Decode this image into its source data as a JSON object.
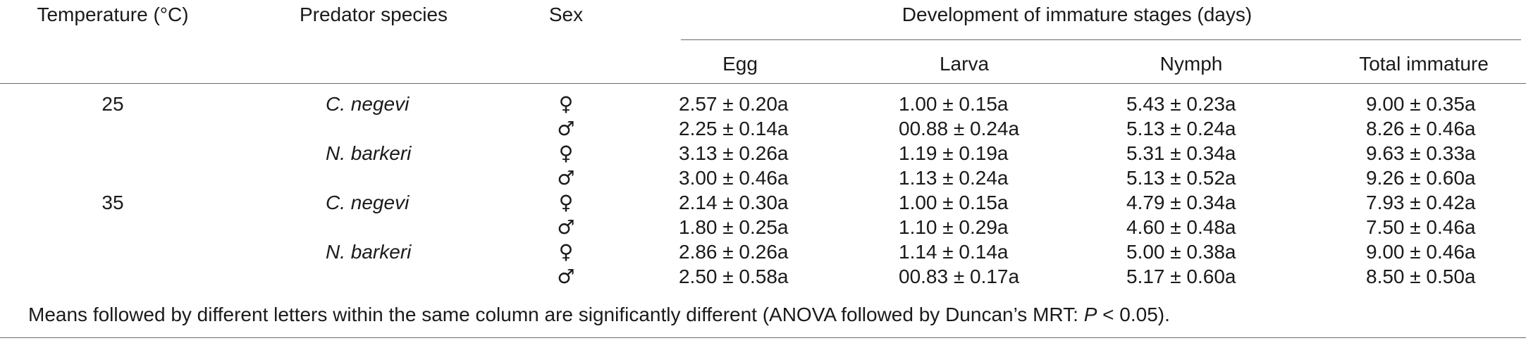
{
  "headers": {
    "temperature": "Temperature (°C)",
    "predator_species": "Predator species",
    "sex": "Sex",
    "development_group": "Development of immature stages (days)",
    "egg": "Egg",
    "larva": "Larva",
    "nymph": "Nymph",
    "total": "Total immature"
  },
  "rows": [
    {
      "temperature": "25",
      "species": "C. negevi",
      "sex": "♀",
      "egg": "2.57 ± 0.20a",
      "larva": "1.00 ± 0.15a",
      "nymph": "5.43 ± 0.23a",
      "total": "9.00 ± 0.35a"
    },
    {
      "temperature": "",
      "species": "",
      "sex": "♂",
      "egg": "2.25 ± 0.14a",
      "larva": "00.88 ± 0.24a",
      "nymph": "5.13 ± 0.24a",
      "total": "8.26 ± 0.46a"
    },
    {
      "temperature": "",
      "species": "N. barkeri",
      "sex": "♀",
      "egg": "3.13 ± 0.26a",
      "larva": "1.19 ± 0.19a",
      "nymph": "5.31 ± 0.34a",
      "total": "9.63 ± 0.33a"
    },
    {
      "temperature": "",
      "species": "",
      "sex": "♂",
      "egg": "3.00 ± 0.46a",
      "larva": "1.13 ± 0.24a",
      "nymph": "5.13 ± 0.52a",
      "total": "9.26 ± 0.60a"
    },
    {
      "temperature": "35",
      "species": "C. negevi",
      "sex": "♀",
      "egg": "2.14 ± 0.30a",
      "larva": "1.00 ± 0.15a",
      "nymph": "4.79 ± 0.34a",
      "total": "7.93 ± 0.42a"
    },
    {
      "temperature": "",
      "species": "",
      "sex": "♂",
      "egg": "1.80 ± 0.25a",
      "larva": "1.10 ± 0.29a",
      "nymph": "4.60 ± 0.48a",
      "total": "7.50 ± 0.46a"
    },
    {
      "temperature": "",
      "species": "N. barkeri",
      "sex": "♀",
      "egg": "2.86 ± 0.26a",
      "larva": "1.14 ± 0.14a",
      "nymph": "5.00 ± 0.38a",
      "total": "9.00 ± 0.46a"
    },
    {
      "temperature": "",
      "species": "",
      "sex": "♂",
      "egg": "2.50 ± 0.58a",
      "larva": "00.83 ± 0.17a",
      "nymph": "5.17 ± 0.60a",
      "total": "8.50 ± 0.50a"
    }
  ],
  "footnote": {
    "before": "Means followed by different letters within the same column are significantly different (ANOVA followed by Duncan’s MRT: ",
    "p_symbol": "P",
    "after": " < 0.05)."
  }
}
